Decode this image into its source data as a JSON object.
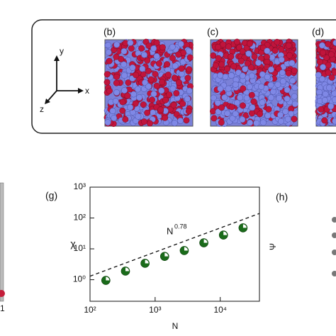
{
  "panels": {
    "b": "(b)",
    "c": "(c)",
    "d": "(d)",
    "h": "(h)",
    "h_ylabel": "Ψ",
    "left_partial_tick": "1"
  },
  "axes_icon": {
    "x": "x",
    "y": "y",
    "z": "z"
  },
  "chart_data": {
    "type": "scatter",
    "title": "(g)",
    "x_label": "N",
    "y_label": "χ",
    "log_x": true,
    "log_y": true,
    "x": [
      175,
      350,
      700,
      1400,
      2800,
      5600,
      11200,
      22400
    ],
    "values": [
      0.95,
      1.9,
      3.4,
      5.7,
      8.8,
      15.7,
      28,
      48
    ],
    "color": "#1a6b1a",
    "fit": {
      "x": [
        100,
        40000
      ],
      "values": [
        1.3,
        140
      ],
      "color": "#111111",
      "dash": true
    },
    "annotation": {
      "base": "N",
      "exponent": "0.78"
    },
    "xlim": [
      100,
      40000
    ],
    "ylim": [
      0.2,
      1000
    ],
    "xticks": [
      {
        "value": 100,
        "label": "10²"
      },
      {
        "value": 1000,
        "label": "10³"
      },
      {
        "value": 10000,
        "label": "10⁴"
      }
    ],
    "yticks": [
      {
        "value": 1,
        "label": "10⁰"
      },
      {
        "value": 10,
        "label": "10¹"
      },
      {
        "value": 100,
        "label": "10²"
      },
      {
        "value": 1000,
        "label": "10³"
      }
    ]
  }
}
